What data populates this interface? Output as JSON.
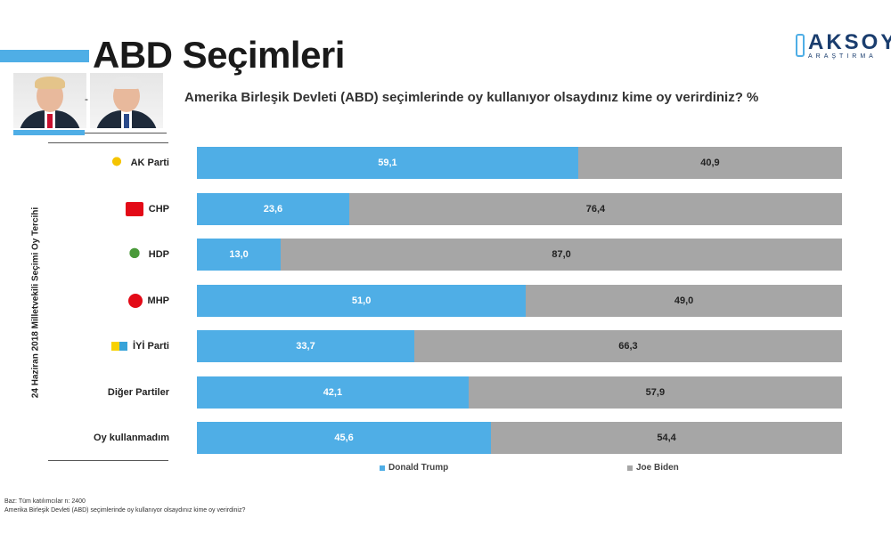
{
  "title": "ABD Seçimleri",
  "logo": {
    "name": "AKSOY",
    "sub": "ARAŞTIRMA"
  },
  "question": "Amerika Birleşik Devleti (ABD) seçimlerinde oy kullanıyor olsaydınız kime oy verirdiniz? %",
  "separator": "-",
  "chart_data": {
    "type": "bar",
    "orientation": "horizontal",
    "stacked": true,
    "ylabel": "24 Haziran 2018 Milletvekili Seçimi Oy Tercihi",
    "categories": [
      "AK Parti",
      "CHP",
      "HDP",
      "MHP",
      "İYİ Parti",
      "Diğer Partiler",
      "Oy kullanmadım"
    ],
    "series": [
      {
        "name": "Donald Trump",
        "values": [
          59.1,
          23.6,
          13.0,
          51.0,
          33.7,
          42.1,
          45.6
        ],
        "labels": [
          "59,1",
          "23,6",
          "13,0",
          "51,0",
          "33,7",
          "42,1",
          "45,6"
        ],
        "color": "#4faee6"
      },
      {
        "name": "Joe Biden",
        "values": [
          40.9,
          76.4,
          87.0,
          49.0,
          66.3,
          57.9,
          54.4
        ],
        "labels": [
          "40,9",
          "76,4",
          "87,0",
          "49,0",
          "66,3",
          "57,9",
          "54,4"
        ],
        "color": "#a6a6a6"
      }
    ],
    "xlim": [
      0,
      100
    ],
    "legend_position": "bottom"
  },
  "party_icons": [
    "ak-parti-logo-icon",
    "chp-logo-icon",
    "hdp-logo-icon",
    "mhp-logo-icon",
    "iyi-parti-logo-icon",
    "",
    ""
  ],
  "footer": {
    "base": "Baz: Tüm katılımcılar n: 2400",
    "question": "Amerika Birleşik Devleti (ABD) seçimlerinde oy kullanıyor olsaydınız kime oy verirdiniz?"
  }
}
